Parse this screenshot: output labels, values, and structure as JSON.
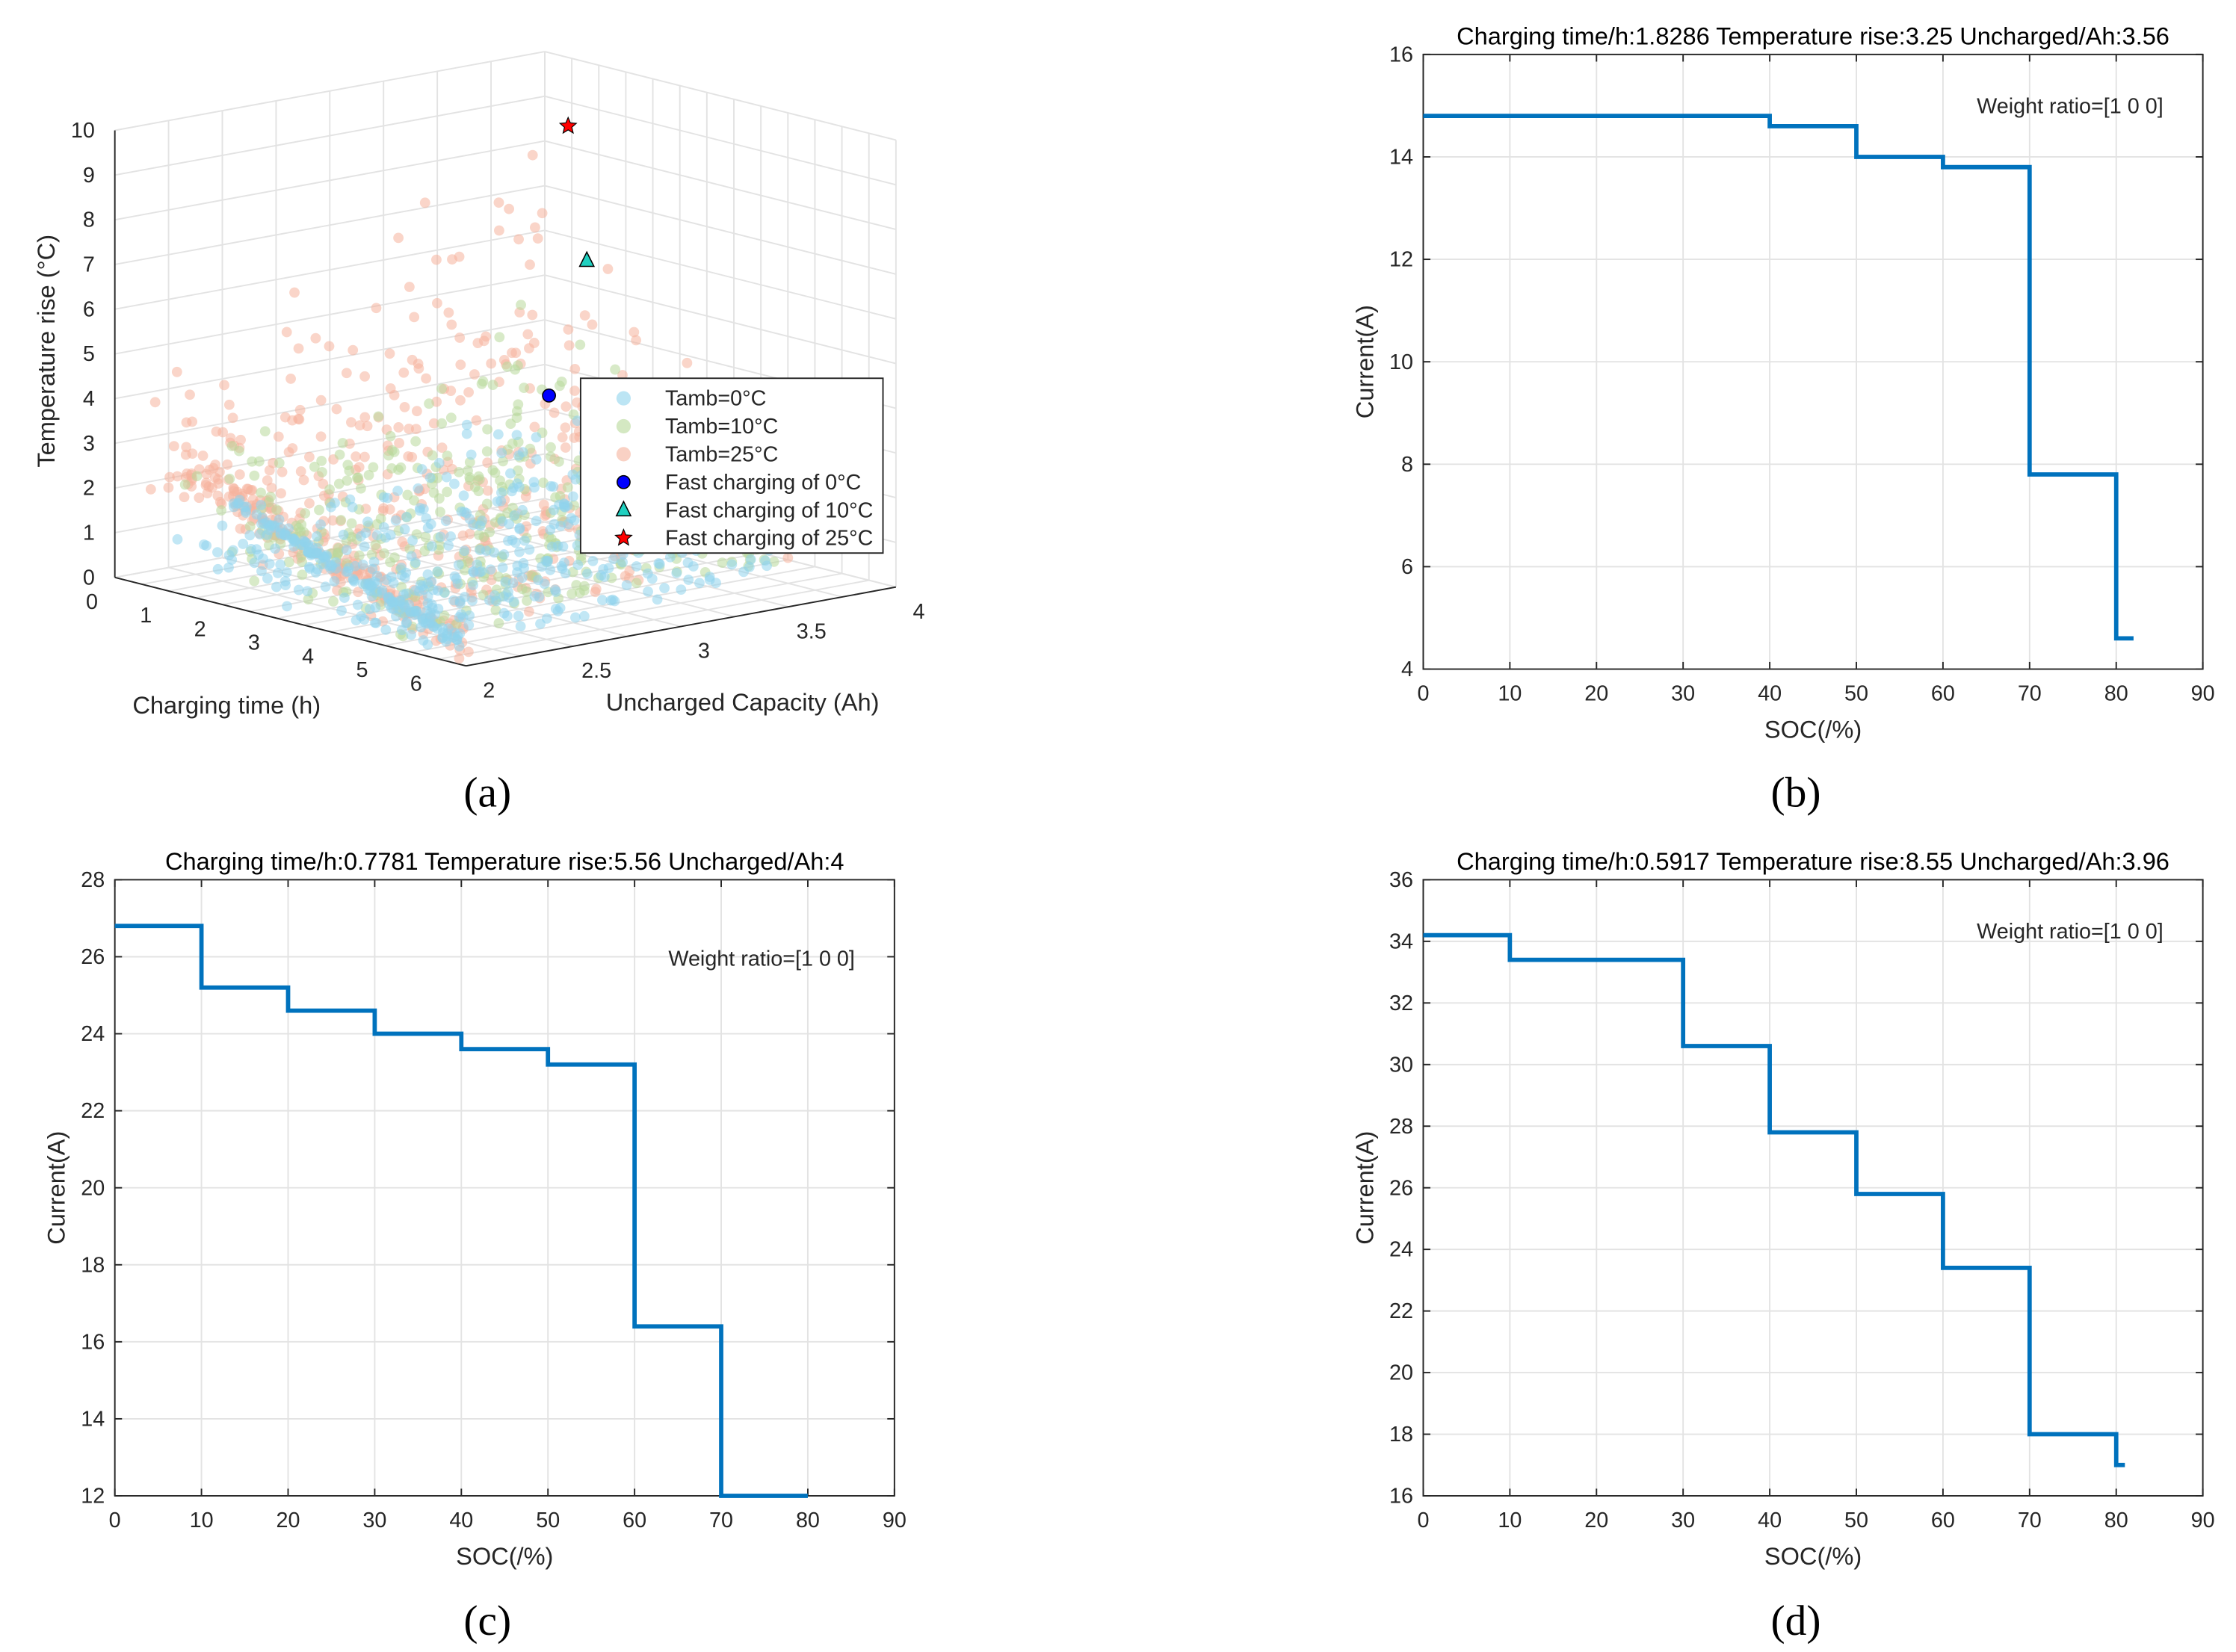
{
  "panel_labels": [
    "(a)",
    "(b)",
    "(c)",
    "(d)"
  ],
  "chart_data": [
    {
      "type": "scatter",
      "panel": "(a)",
      "xlabel": "Charging time (h)",
      "ylabel": "Uncharged Capacity (Ah)",
      "zlabel": "Temperature rise (°C)",
      "xlim": [
        0,
        6.5
      ],
      "ylim": [
        2,
        4
      ],
      "zlim": [
        0,
        10
      ],
      "xticks": [
        "0",
        "1",
        "2",
        "3",
        "4",
        "5",
        "6"
      ],
      "xtick_values": [
        0,
        1,
        2,
        3,
        4,
        5,
        6
      ],
      "yticks": [
        "2",
        "2.5",
        "3",
        "3.5",
        "4"
      ],
      "ytick_values": [
        2,
        2.5,
        3,
        3.5,
        4
      ],
      "zticks": [
        "0",
        "1",
        "2",
        "3",
        "4",
        "5",
        "6",
        "7",
        "8",
        "9",
        "10"
      ],
      "grid": true,
      "legend_placement": "right",
      "series": [
        {
          "name": "Tamb=0°C",
          "marker": "circle",
          "color": "#8fd3ec"
        },
        {
          "name": "Tamb=10°C",
          "marker": "circle",
          "color": "#b8d99a"
        },
        {
          "name": "Tamb=25°C",
          "marker": "circle",
          "color": "#f5b39c"
        },
        {
          "name": "Fast charging of 0°C",
          "marker": "circle",
          "color": "#0000ff",
          "point": [
            1.8286,
            3.56,
            3.25
          ]
        },
        {
          "name": "Fast charging of 10°C",
          "marker": "triangle",
          "color": "#20d0c0",
          "point": [
            0.7781,
            4,
            5.56
          ]
        },
        {
          "name": "Fast charging of 25°C",
          "marker": "star",
          "color": "#ff0000",
          "point": [
            0.5917,
            3.96,
            8.55
          ]
        }
      ]
    },
    {
      "type": "line",
      "panel": "(b)",
      "title": "Charging time/h:1.8286  Temperature rise:3.25  Uncharged/Ah:3.56",
      "annotation": "Weight ratio=[1 0 0]",
      "xlabel": "SOC(/%)",
      "ylabel": "Current(A)",
      "xlim": [
        0,
        90
      ],
      "ylim": [
        4,
        16
      ],
      "xticks": [
        0,
        10,
        20,
        30,
        40,
        50,
        60,
        70,
        80,
        90
      ],
      "yticks": [
        4,
        6,
        8,
        10,
        12,
        14,
        16
      ],
      "grid": true,
      "soc_breaks": [
        0,
        40,
        50,
        60,
        70,
        80,
        82
      ],
      "currents": [
        14.8,
        14.6,
        14.0,
        13.8,
        7.8,
        4.6
      ],
      "color": "#0072bd"
    },
    {
      "type": "line",
      "panel": "(c)",
      "title": "Charging time/h:0.7781  Temperature rise:5.56  Uncharged/Ah:4",
      "annotation": "Weight ratio=[1 0 0]",
      "xlabel": "SOC(/%)",
      "ylabel": "Current(A)",
      "xlim": [
        0,
        90
      ],
      "ylim": [
        12,
        28
      ],
      "xticks": [
        0,
        10,
        20,
        30,
        40,
        50,
        60,
        70,
        80,
        90
      ],
      "yticks": [
        12,
        14,
        16,
        18,
        20,
        22,
        24,
        26,
        28
      ],
      "grid": true,
      "soc_breaks": [
        0,
        10,
        20,
        30,
        40,
        50,
        60,
        70,
        80
      ],
      "currents": [
        26.8,
        25.2,
        24.6,
        24.0,
        23.6,
        23.2,
        16.4,
        12.0
      ],
      "color": "#0072bd"
    },
    {
      "type": "line",
      "panel": "(d)",
      "title": "Charging time/h:0.5917  Temperature rise:8.55  Uncharged/Ah:3.96",
      "annotation": "Weight ratio=[1 0 0]",
      "xlabel": "SOC(/%)",
      "ylabel": "Current(A)",
      "xlim": [
        0,
        90
      ],
      "ylim": [
        16,
        36
      ],
      "xticks": [
        0,
        10,
        20,
        30,
        40,
        50,
        60,
        70,
        80,
        90
      ],
      "yticks": [
        16,
        18,
        20,
        22,
        24,
        26,
        28,
        30,
        32,
        34,
        36
      ],
      "grid": true,
      "soc_breaks": [
        0,
        10,
        30,
        40,
        50,
        60,
        70,
        80,
        81
      ],
      "currents": [
        34.2,
        33.4,
        30.6,
        27.8,
        25.8,
        23.4,
        18.0,
        17.0
      ],
      "color": "#0072bd"
    }
  ]
}
